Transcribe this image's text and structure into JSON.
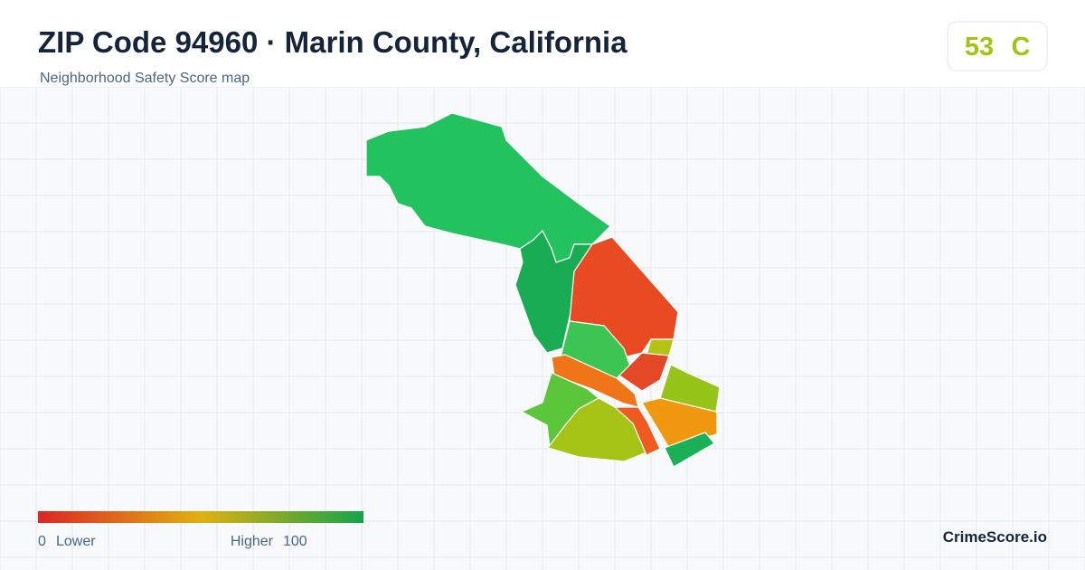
{
  "header": {
    "title": "ZIP Code 94960 · Marin County, California",
    "subtitle": "Neighborhood Safety Score map"
  },
  "score": {
    "value": "53",
    "grade": "C"
  },
  "legend": {
    "min": "0",
    "min_label": "Lower",
    "max_label": "Higher",
    "max": "100"
  },
  "brand": "CrimeScore.io"
}
